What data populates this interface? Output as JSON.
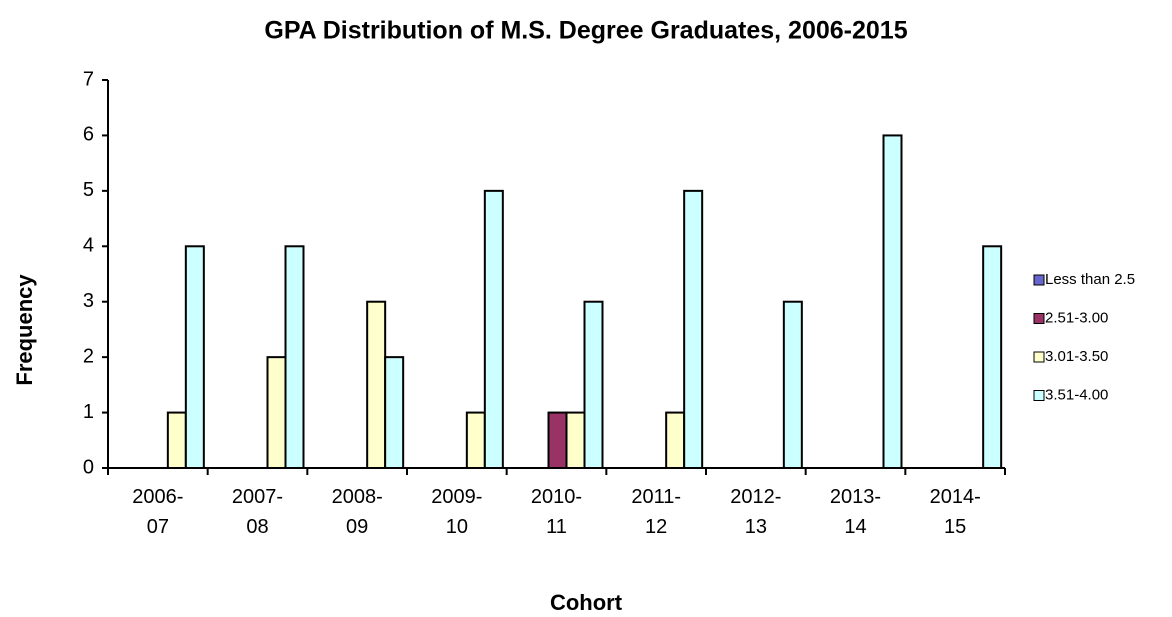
{
  "chart_data": {
    "type": "bar",
    "title": "GPA Distribution of M.S. Degree Graduates, 2006-2015",
    "x_label": "Cohort",
    "y_label": "Frequency",
    "categories": [
      "2006- 07",
      "2007- 08",
      "2008- 09",
      "2009- 10",
      "2010- 11",
      "2011- 12",
      "2012- 13",
      "2013- 14",
      "2014- 15"
    ],
    "series": [
      {
        "name": "Less than 2.5",
        "color": "#6666cc",
        "values": [
          0,
          0,
          0,
          0,
          0,
          0,
          0,
          0,
          0
        ]
      },
      {
        "name": "2.51-3.00",
        "color": "#993366",
        "values": [
          0,
          0,
          0,
          0,
          1,
          0,
          0,
          0,
          0
        ]
      },
      {
        "name": "3.01-3.50",
        "color": "#ffffcc",
        "values": [
          1,
          2,
          3,
          1,
          1,
          1,
          0,
          0,
          0
        ]
      },
      {
        "name": "3.51-4.00",
        "color": "#ccffff",
        "values": [
          4,
          4,
          2,
          5,
          3,
          5,
          3,
          6,
          4
        ]
      }
    ],
    "ylim": [
      0,
      7
    ],
    "yticks": [
      0,
      1,
      2,
      3,
      4,
      5,
      6,
      7
    ],
    "legend": "right"
  }
}
